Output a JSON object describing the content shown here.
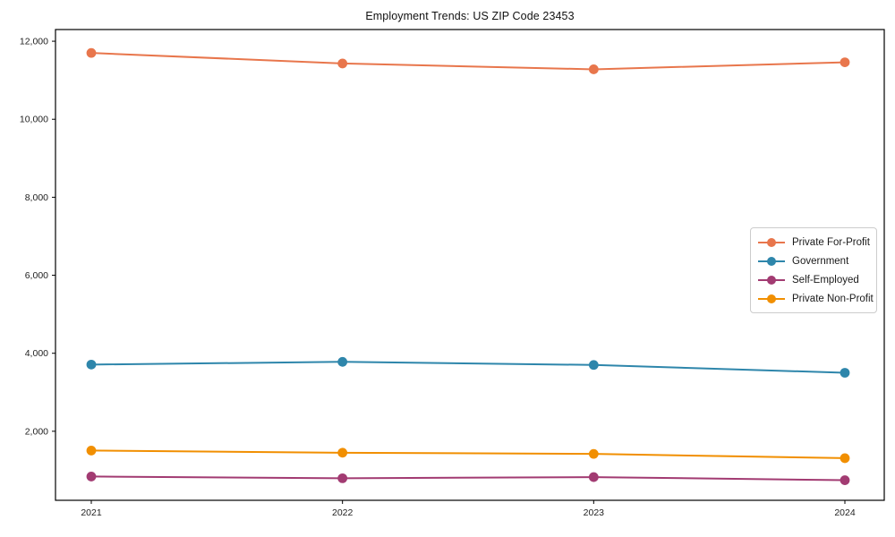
{
  "chart_data": {
    "type": "line",
    "title": "Employment Trends: US ZIP Code 23453",
    "xlabel": "",
    "ylabel": "",
    "x": [
      "2021",
      "2022",
      "2023",
      "2024"
    ],
    "series": [
      {
        "name": "Private For-Profit",
        "color": "#E8764C",
        "values": [
          11700,
          11430,
          11280,
          11460
        ]
      },
      {
        "name": "Government",
        "color": "#2E86AB",
        "values": [
          3710,
          3780,
          3700,
          3500
        ]
      },
      {
        "name": "Self-Employed",
        "color": "#A23B72",
        "values": [
          840,
          795,
          825,
          745
        ]
      },
      {
        "name": "Private Non-Profit",
        "color": "#F18F01",
        "values": [
          1505,
          1450,
          1420,
          1310
        ]
      }
    ],
    "ylim": [
      230,
      12300
    ],
    "yticks": [
      2000,
      4000,
      6000,
      8000,
      10000,
      12000
    ],
    "ytick_labels": [
      "2,000",
      "4,000",
      "6,000",
      "8,000",
      "10,000",
      "12,000"
    ],
    "grid": false,
    "legend_position": "center-right",
    "marker": "circle",
    "axis_color": "#000000"
  }
}
